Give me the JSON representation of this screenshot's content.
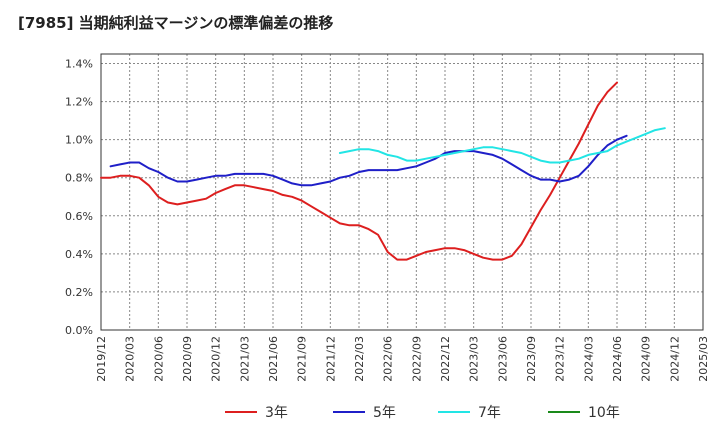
{
  "chart_data": {
    "type": "line",
    "title": "[7985]  当期純利益マージンの標準偏差の推移",
    "ylim": [
      0,
      0.0145
    ],
    "yticks": [
      0.0,
      0.002,
      0.004,
      0.006,
      0.008,
      0.01,
      0.012,
      0.014
    ],
    "ytick_labels": [
      "0.0%",
      "0.2%",
      "0.4%",
      "0.6%",
      "0.8%",
      "1.0%",
      "1.2%",
      "1.4%"
    ],
    "x_labels": [
      "2019/12",
      "2020/03",
      "2020/06",
      "2020/09",
      "2020/12",
      "2021/03",
      "2021/06",
      "2021/09",
      "2021/12",
      "2022/03",
      "2022/06",
      "2022/09",
      "2022/12",
      "2023/03",
      "2023/06",
      "2023/09",
      "2023/12",
      "2024/03",
      "2024/06",
      "2024/09",
      "2024/12",
      "2025/03"
    ],
    "grid": true,
    "legend_position": "bottom",
    "series": [
      {
        "name": "3年",
        "color": "#dd1f1f",
        "start": "2019/12",
        "values": [
          0.008,
          0.008,
          0.0081,
          0.0081,
          0.008,
          0.0076,
          0.007,
          0.0067,
          0.0066,
          0.0067,
          0.0068,
          0.0069,
          0.0072,
          0.0074,
          0.0076,
          0.0076,
          0.0075,
          0.0074,
          0.0073,
          0.0071,
          0.007,
          0.0068,
          0.0065,
          0.0062,
          0.0059,
          0.0056,
          0.0055,
          0.0055,
          0.0053,
          0.005,
          0.0041,
          0.0037,
          0.0037,
          0.0039,
          0.0041,
          0.0042,
          0.0043,
          0.0043,
          0.0042,
          0.004,
          0.0038,
          0.0037,
          0.0037,
          0.0039,
          0.0045,
          0.0054,
          0.0063,
          0.0071,
          0.008,
          0.0089,
          0.0098,
          0.0108,
          0.0118,
          0.0125,
          0.013
        ]
      },
      {
        "name": "5年",
        "color": "#1f1fc8",
        "start": "2020/01",
        "values": [
          0.0086,
          0.0087,
          0.0088,
          0.0088,
          0.0085,
          0.0083,
          0.008,
          0.0078,
          0.0078,
          0.0079,
          0.008,
          0.0081,
          0.0081,
          0.0082,
          0.0082,
          0.0082,
          0.0082,
          0.0081,
          0.0079,
          0.0077,
          0.0076,
          0.0076,
          0.0077,
          0.0078,
          0.008,
          0.0081,
          0.0083,
          0.0084,
          0.0084,
          0.0084,
          0.0084,
          0.0085,
          0.0086,
          0.0088,
          0.009,
          0.0093,
          0.0094,
          0.0094,
          0.0094,
          0.0093,
          0.0092,
          0.009,
          0.0087,
          0.0084,
          0.0081,
          0.0079,
          0.0079,
          0.0078,
          0.0079,
          0.0081,
          0.0086,
          0.0092,
          0.0097,
          0.01,
          0.0102
        ]
      },
      {
        "name": "7年",
        "color": "#22e5e5",
        "start": "2022/01",
        "values": [
          0.0093,
          0.0094,
          0.0095,
          0.0095,
          0.0094,
          0.0092,
          0.0091,
          0.0089,
          0.0089,
          0.009,
          0.0091,
          0.0092,
          0.0093,
          0.0094,
          0.0095,
          0.0096,
          0.0096,
          0.0095,
          0.0094,
          0.0093,
          0.0091,
          0.0089,
          0.0088,
          0.0088,
          0.0089,
          0.009,
          0.0092,
          0.0093,
          0.0094,
          0.0097,
          0.0099,
          0.0101,
          0.0103,
          0.0105,
          0.0106
        ]
      },
      {
        "name": "10年",
        "color": "#1a8a1a",
        "start": null,
        "values": []
      }
    ]
  }
}
